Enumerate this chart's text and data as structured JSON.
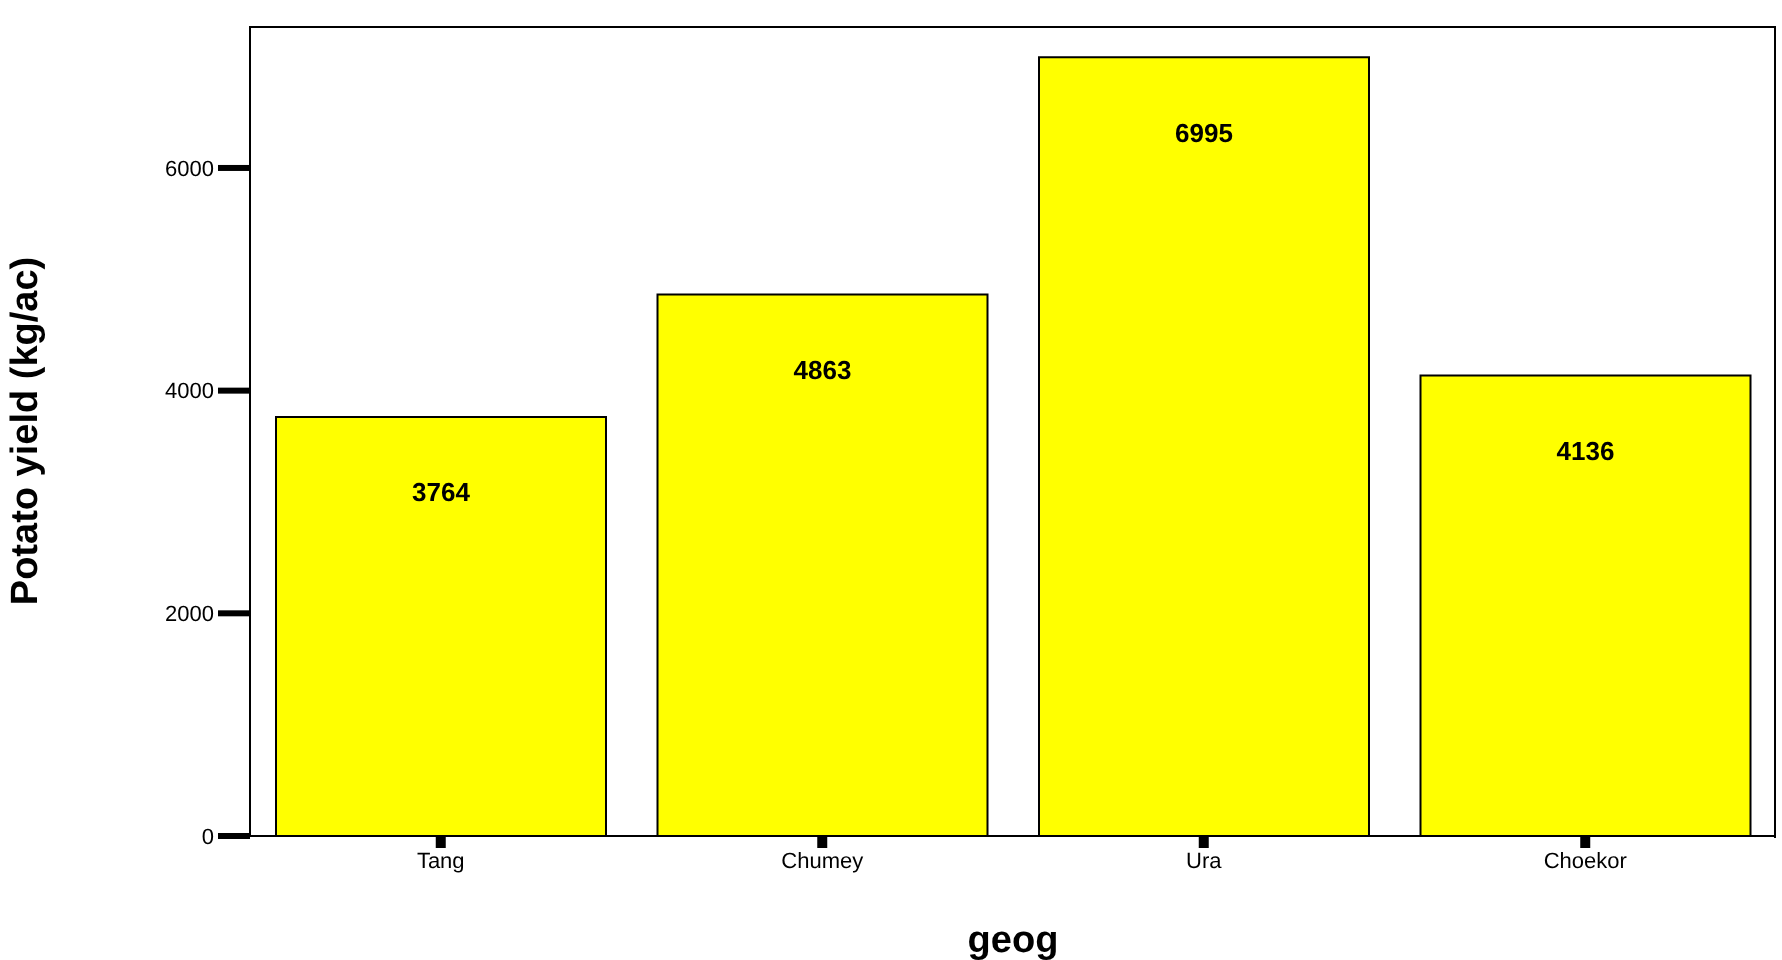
{
  "chart_data": {
    "type": "bar",
    "xlabel": "geog",
    "ylabel": "Potato yield (kg/ac)",
    "categories": [
      "Tang",
      "Chumey",
      "Ura",
      "Choekor"
    ],
    "values": [
      3764,
      4863,
      6995,
      4136
    ],
    "color": "#ffff00",
    "ylim": [
      0,
      7275
    ],
    "yticks": [
      0,
      2000,
      4000,
      6000
    ],
    "data_labels": true,
    "grid": false,
    "legend": false
  }
}
